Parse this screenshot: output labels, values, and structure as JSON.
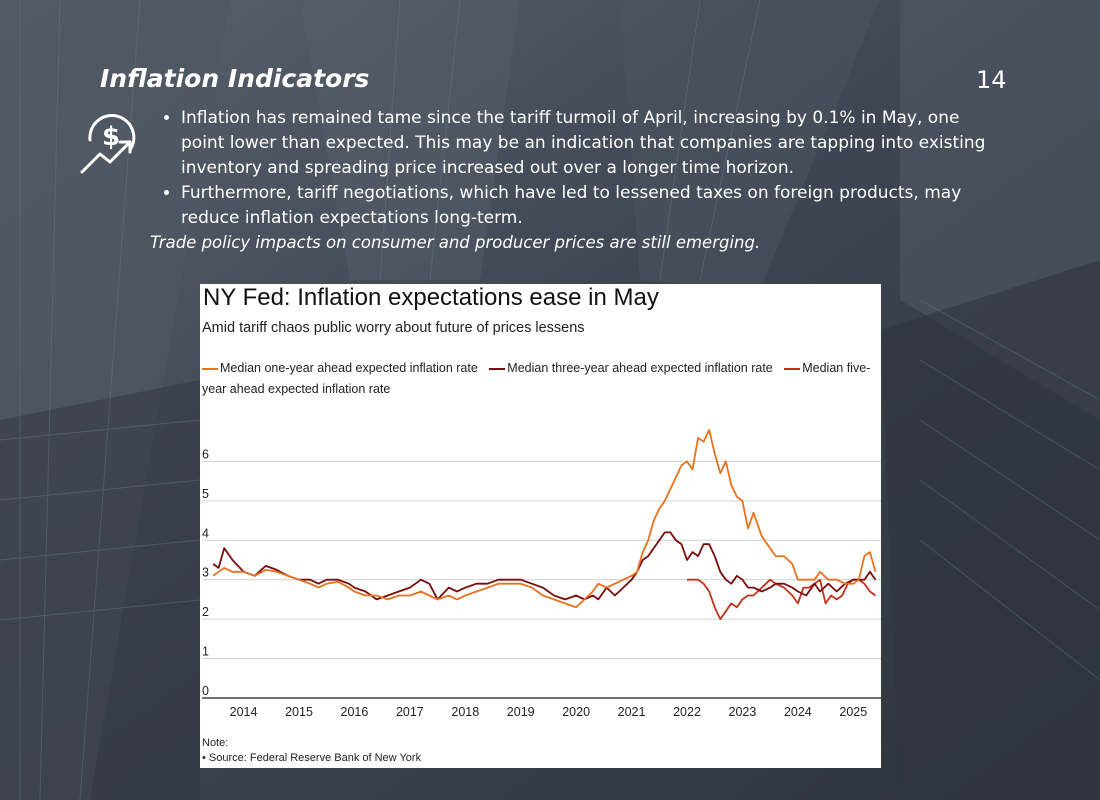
{
  "slide": {
    "title": "Inflation Indicators",
    "page_number": "14",
    "icon": "dollar-growth-icon",
    "bullets": [
      "Inflation has remained tame since the tariff turmoil of April, increasing by 0.1% in May, one point lower than expected. This may be an indication that companies are tapping into existing inventory and spreading price increased out over a longer time horizon.",
      "Furthermore, tariff negotiations, which have led to lessened taxes on foreign products, may reduce inflation expectations long-term."
    ],
    "note": "Trade policy impacts on consumer and producer prices are still emerging."
  },
  "colors": {
    "one_year": "#e8711c",
    "three_year": "#7b0c0c",
    "five_year": "#c0301b"
  },
  "chart_data": {
    "type": "line",
    "title": "NY Fed: Inflation expectations ease in May",
    "subtitle": "Amid tariff chaos public worry about future of prices lessens",
    "note_label": "Note:",
    "source": "• Source: Federal Reserve Bank of New York",
    "ylim": [
      0,
      7
    ],
    "yticks": [
      "0",
      "1",
      "2",
      "3",
      "4",
      "5",
      "6"
    ],
    "xticks": [
      "2014",
      "2015",
      "2016",
      "2017",
      "2018",
      "2019",
      "2020",
      "2021",
      "2022",
      "2023",
      "2024",
      "2025"
    ],
    "xlim": [
      2013.25,
      2025.5
    ],
    "grid": true,
    "legend_position": "top",
    "series": [
      {
        "name": "Median one-year ahead expected inflation rate",
        "color_key": "one_year",
        "points": [
          [
            2013.45,
            3.1
          ],
          [
            2013.55,
            3.2
          ],
          [
            2013.65,
            3.3
          ],
          [
            2013.8,
            3.2
          ],
          [
            2014.0,
            3.2
          ],
          [
            2014.2,
            3.1
          ],
          [
            2014.4,
            3.25
          ],
          [
            2014.6,
            3.2
          ],
          [
            2014.8,
            3.1
          ],
          [
            2015.0,
            3.0
          ],
          [
            2015.2,
            2.9
          ],
          [
            2015.35,
            2.8
          ],
          [
            2015.5,
            2.9
          ],
          [
            2015.7,
            2.95
          ],
          [
            2015.9,
            2.8
          ],
          [
            2016.0,
            2.7
          ],
          [
            2016.2,
            2.6
          ],
          [
            2016.4,
            2.6
          ],
          [
            2016.6,
            2.5
          ],
          [
            2016.8,
            2.6
          ],
          [
            2017.0,
            2.6
          ],
          [
            2017.2,
            2.7
          ],
          [
            2017.35,
            2.6
          ],
          [
            2017.5,
            2.5
          ],
          [
            2017.7,
            2.6
          ],
          [
            2017.85,
            2.5
          ],
          [
            2018.0,
            2.6
          ],
          [
            2018.2,
            2.7
          ],
          [
            2018.4,
            2.8
          ],
          [
            2018.6,
            2.9
          ],
          [
            2018.8,
            2.9
          ],
          [
            2019.0,
            2.9
          ],
          [
            2019.2,
            2.8
          ],
          [
            2019.4,
            2.6
          ],
          [
            2019.6,
            2.5
          ],
          [
            2019.8,
            2.4
          ],
          [
            2020.0,
            2.3
          ],
          [
            2020.15,
            2.5
          ],
          [
            2020.3,
            2.7
          ],
          [
            2020.4,
            2.9
          ],
          [
            2020.55,
            2.8
          ],
          [
            2020.7,
            2.9
          ],
          [
            2020.85,
            3.0
          ],
          [
            2021.0,
            3.1
          ],
          [
            2021.1,
            3.2
          ],
          [
            2021.2,
            3.7
          ],
          [
            2021.3,
            4.0
          ],
          [
            2021.4,
            4.5
          ],
          [
            2021.5,
            4.8
          ],
          [
            2021.6,
            5.0
          ],
          [
            2021.7,
            5.3
          ],
          [
            2021.8,
            5.6
          ],
          [
            2021.9,
            5.9
          ],
          [
            2022.0,
            6.0
          ],
          [
            2022.1,
            5.8
          ],
          [
            2022.2,
            6.6
          ],
          [
            2022.3,
            6.5
          ],
          [
            2022.4,
            6.8
          ],
          [
            2022.5,
            6.2
          ],
          [
            2022.6,
            5.7
          ],
          [
            2022.7,
            6.0
          ],
          [
            2022.8,
            5.4
          ],
          [
            2022.9,
            5.1
          ],
          [
            2023.0,
            5.0
          ],
          [
            2023.1,
            4.3
          ],
          [
            2023.2,
            4.7
          ],
          [
            2023.35,
            4.1
          ],
          [
            2023.5,
            3.8
          ],
          [
            2023.6,
            3.6
          ],
          [
            2023.75,
            3.6
          ],
          [
            2023.9,
            3.4
          ],
          [
            2024.0,
            3.0
          ],
          [
            2024.15,
            3.0
          ],
          [
            2024.3,
            3.0
          ],
          [
            2024.4,
            3.2
          ],
          [
            2024.55,
            3.0
          ],
          [
            2024.7,
            3.0
          ],
          [
            2024.85,
            2.9
          ],
          [
            2025.0,
            2.9
          ],
          [
            2025.1,
            3.0
          ],
          [
            2025.2,
            3.6
          ],
          [
            2025.3,
            3.7
          ],
          [
            2025.4,
            3.2
          ]
        ]
      },
      {
        "name": "Median three-year ahead expected inflation rate",
        "color_key": "three_year",
        "points": [
          [
            2013.45,
            3.4
          ],
          [
            2013.55,
            3.3
          ],
          [
            2013.65,
            3.8
          ],
          [
            2013.8,
            3.5
          ],
          [
            2014.0,
            3.2
          ],
          [
            2014.2,
            3.1
          ],
          [
            2014.4,
            3.35
          ],
          [
            2014.6,
            3.25
          ],
          [
            2014.8,
            3.1
          ],
          [
            2015.0,
            3.0
          ],
          [
            2015.2,
            3.0
          ],
          [
            2015.35,
            2.9
          ],
          [
            2015.5,
            3.0
          ],
          [
            2015.7,
            3.0
          ],
          [
            2015.9,
            2.9
          ],
          [
            2016.0,
            2.8
          ],
          [
            2016.2,
            2.7
          ],
          [
            2016.4,
            2.5
          ],
          [
            2016.6,
            2.6
          ],
          [
            2016.8,
            2.7
          ],
          [
            2017.0,
            2.8
          ],
          [
            2017.2,
            3.0
          ],
          [
            2017.35,
            2.9
          ],
          [
            2017.5,
            2.5
          ],
          [
            2017.7,
            2.8
          ],
          [
            2017.85,
            2.7
          ],
          [
            2018.0,
            2.8
          ],
          [
            2018.2,
            2.9
          ],
          [
            2018.4,
            2.9
          ],
          [
            2018.6,
            3.0
          ],
          [
            2018.8,
            3.0
          ],
          [
            2019.0,
            3.0
          ],
          [
            2019.2,
            2.9
          ],
          [
            2019.4,
            2.8
          ],
          [
            2019.6,
            2.6
          ],
          [
            2019.8,
            2.5
          ],
          [
            2020.0,
            2.6
          ],
          [
            2020.15,
            2.5
          ],
          [
            2020.3,
            2.6
          ],
          [
            2020.4,
            2.5
          ],
          [
            2020.55,
            2.8
          ],
          [
            2020.7,
            2.6
          ],
          [
            2020.85,
            2.8
          ],
          [
            2021.0,
            3.0
          ],
          [
            2021.1,
            3.2
          ],
          [
            2021.2,
            3.5
          ],
          [
            2021.3,
            3.6
          ],
          [
            2021.4,
            3.8
          ],
          [
            2021.5,
            4.0
          ],
          [
            2021.6,
            4.2
          ],
          [
            2021.7,
            4.2
          ],
          [
            2021.8,
            4.0
          ],
          [
            2021.9,
            3.9
          ],
          [
            2022.0,
            3.5
          ],
          [
            2022.1,
            3.7
          ],
          [
            2022.2,
            3.6
          ],
          [
            2022.3,
            3.9
          ],
          [
            2022.4,
            3.9
          ],
          [
            2022.5,
            3.6
          ],
          [
            2022.6,
            3.2
          ],
          [
            2022.7,
            3.0
          ],
          [
            2022.8,
            2.9
          ],
          [
            2022.9,
            3.1
          ],
          [
            2023.0,
            3.0
          ],
          [
            2023.1,
            2.8
          ],
          [
            2023.2,
            2.8
          ],
          [
            2023.35,
            2.7
          ],
          [
            2023.5,
            2.8
          ],
          [
            2023.6,
            2.9
          ],
          [
            2023.75,
            2.9
          ],
          [
            2023.9,
            2.8
          ],
          [
            2024.0,
            2.7
          ],
          [
            2024.15,
            2.6
          ],
          [
            2024.3,
            2.9
          ],
          [
            2024.4,
            2.7
          ],
          [
            2024.55,
            2.9
          ],
          [
            2024.7,
            2.7
          ],
          [
            2024.85,
            2.9
          ],
          [
            2025.0,
            3.0
          ],
          [
            2025.1,
            3.0
          ],
          [
            2025.2,
            3.0
          ],
          [
            2025.3,
            3.2
          ],
          [
            2025.4,
            3.0
          ]
        ]
      },
      {
        "name": "Median five-year ahead expected inflation rate",
        "color_key": "five_year",
        "points": [
          [
            2022.0,
            3.0
          ],
          [
            2022.1,
            3.0
          ],
          [
            2022.2,
            3.0
          ],
          [
            2022.3,
            2.9
          ],
          [
            2022.4,
            2.7
          ],
          [
            2022.5,
            2.3
          ],
          [
            2022.6,
            2.0
          ],
          [
            2022.7,
            2.2
          ],
          [
            2022.8,
            2.4
          ],
          [
            2022.9,
            2.3
          ],
          [
            2023.0,
            2.5
          ],
          [
            2023.1,
            2.6
          ],
          [
            2023.2,
            2.6
          ],
          [
            2023.35,
            2.8
          ],
          [
            2023.5,
            3.0
          ],
          [
            2023.6,
            2.9
          ],
          [
            2023.75,
            2.8
          ],
          [
            2023.9,
            2.6
          ],
          [
            2024.0,
            2.4
          ],
          [
            2024.1,
            2.8
          ],
          [
            2024.2,
            2.8
          ],
          [
            2024.3,
            2.9
          ],
          [
            2024.4,
            3.0
          ],
          [
            2024.5,
            2.4
          ],
          [
            2024.6,
            2.6
          ],
          [
            2024.7,
            2.5
          ],
          [
            2024.8,
            2.6
          ],
          [
            2024.9,
            2.9
          ],
          [
            2025.0,
            3.0
          ],
          [
            2025.1,
            3.0
          ],
          [
            2025.2,
            2.9
          ],
          [
            2025.3,
            2.7
          ],
          [
            2025.4,
            2.6
          ]
        ]
      }
    ]
  }
}
